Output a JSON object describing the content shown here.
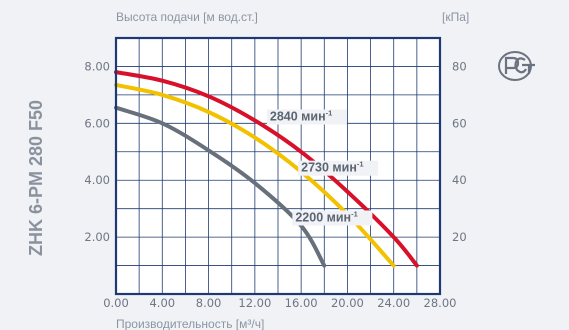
{
  "chart_data": {
    "type": "line",
    "model": "ZHK 6-PM 280 F50",
    "ylabel_left": "Высота подачи [м вод.ст.]",
    "ylabel_right": "[кПа]",
    "xlabel": "Производительность [м³/ч]",
    "xlim": [
      0,
      28
    ],
    "ylim": [
      0,
      9
    ],
    "right_ylim": [
      0,
      90
    ],
    "x_ticks": [
      {
        "value": 0,
        "label": "0.00"
      },
      {
        "value": 4,
        "label": "4.00"
      },
      {
        "value": 8,
        "label": "8.00"
      },
      {
        "value": 12,
        "label": "12.00"
      },
      {
        "value": 16,
        "label": "16.00"
      },
      {
        "value": 20,
        "label": "20.00"
      },
      {
        "value": 24,
        "label": "24.00"
      },
      {
        "value": 28,
        "label": "28.00"
      }
    ],
    "y_ticks_left": [
      {
        "value": 2,
        "label": "2.00"
      },
      {
        "value": 4,
        "label": "4.00"
      },
      {
        "value": 6,
        "label": "6.00"
      },
      {
        "value": 8,
        "label": "8.00"
      }
    ],
    "y_ticks_right": [
      {
        "value": 2,
        "label": "20"
      },
      {
        "value": 4,
        "label": "40"
      },
      {
        "value": 6,
        "label": "60"
      },
      {
        "value": 8,
        "label": "80"
      }
    ],
    "grid": true,
    "series": [
      {
        "name": "2840 мин-1",
        "label_main": "2840 мин",
        "label_sup": "-1",
        "color": "#d8102a",
        "x": [
          0,
          4,
          8,
          12,
          16,
          20,
          24,
          26
        ],
        "y": [
          7.8,
          7.5,
          6.95,
          6.1,
          5.0,
          3.6,
          2.0,
          1.0
        ],
        "label_at": [
          13.3,
          6.1
        ]
      },
      {
        "name": "2730 мин-1",
        "label_main": "2730 мин",
        "label_sup": "-1",
        "color": "#f2c200",
        "x": [
          0,
          4,
          8,
          12,
          16,
          20,
          24
        ],
        "y": [
          7.35,
          7.0,
          6.4,
          5.5,
          4.3,
          2.8,
          1.0
        ],
        "label_at": [
          16.0,
          4.3
        ]
      },
      {
        "name": "2200 мин-1",
        "label_main": "2200 мин",
        "label_sup": "-1",
        "color": "#68707c",
        "x": [
          0,
          4,
          8,
          12,
          16,
          18
        ],
        "y": [
          6.55,
          6.0,
          5.05,
          3.9,
          2.4,
          1.0
        ],
        "label_at": [
          15.5,
          2.55
        ]
      }
    ]
  },
  "logo": {
    "name": "rst-certification-mark"
  }
}
